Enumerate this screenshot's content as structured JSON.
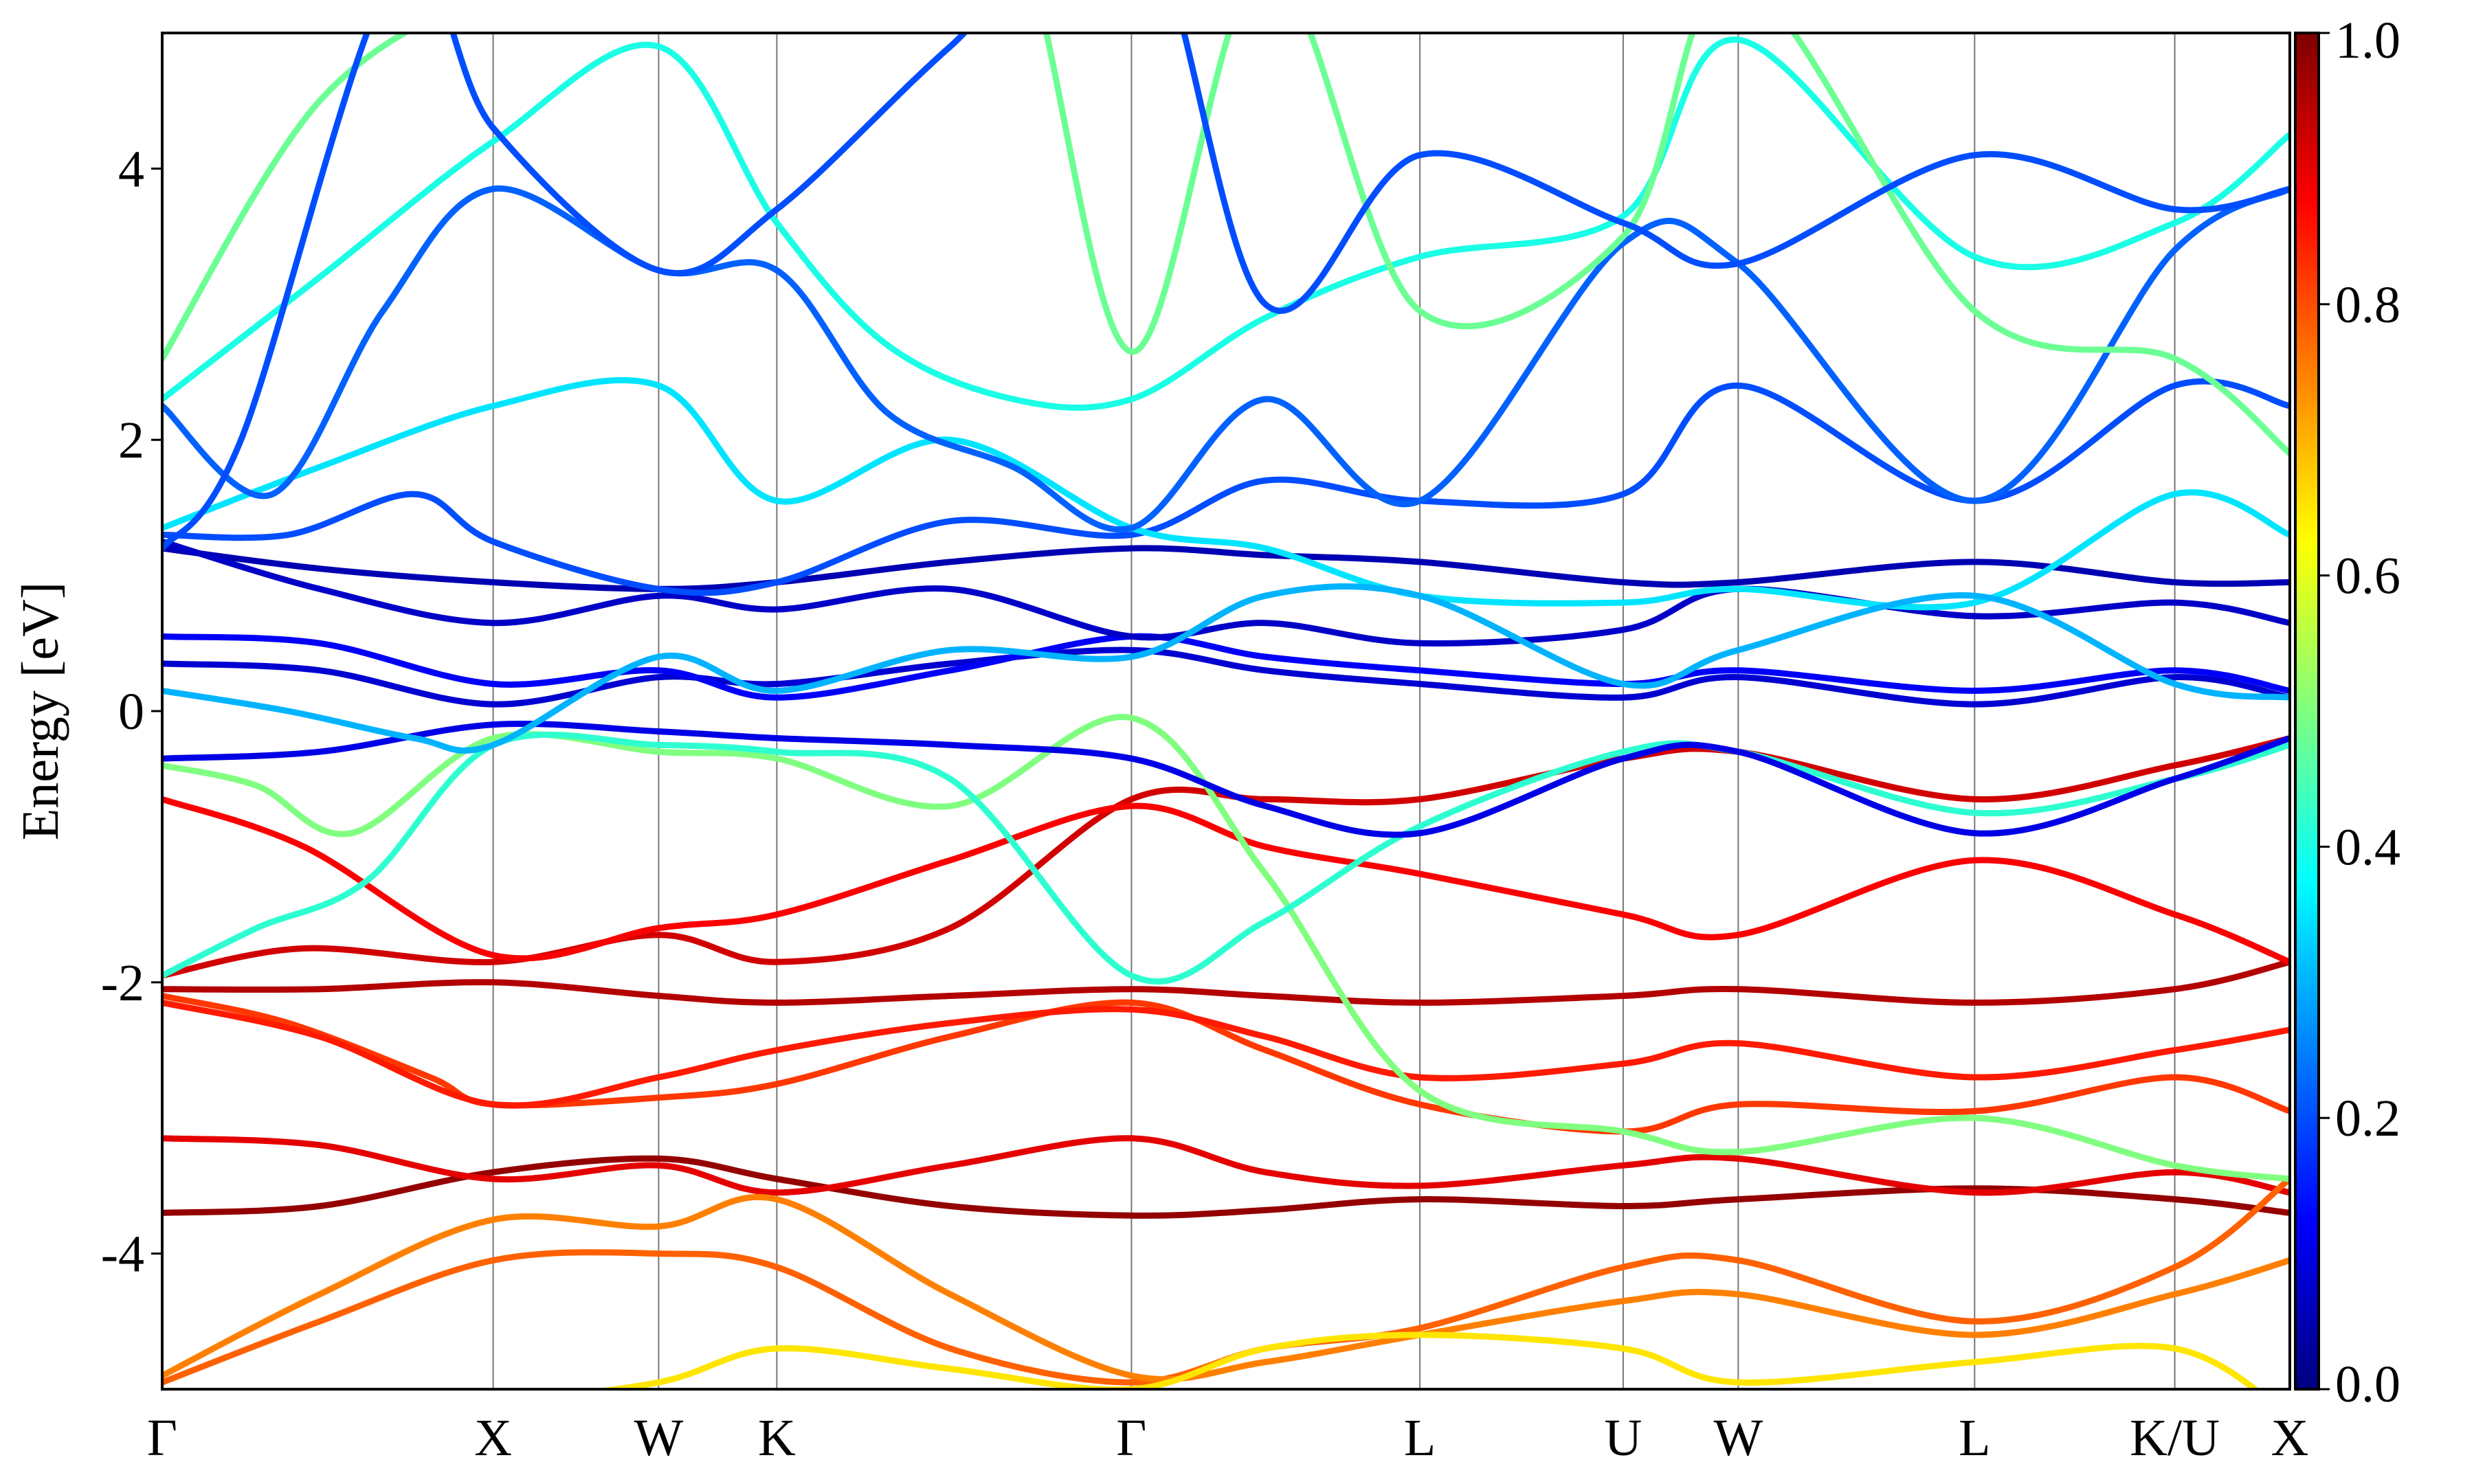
{
  "chart_data": {
    "type": "line",
    "title": "",
    "ylabel": "Energy [eV]",
    "xlabel": "",
    "ylim": [
      -5,
      5
    ],
    "yticks": [
      "4",
      "2",
      "0",
      "-2",
      "-4"
    ],
    "y_tick_values": [
      4,
      2,
      0,
      -2,
      -4
    ],
    "xlim": [
      0,
      13.5
    ],
    "kpoints": [
      {
        "label": "Γ",
        "x": 0
      },
      {
        "label": "X",
        "x": 2.1
      },
      {
        "label": "W",
        "x": 3.15
      },
      {
        "label": "K",
        "x": 3.9
      },
      {
        "label": "Γ",
        "x": 6.15
      },
      {
        "label": "L",
        "x": 7.98
      },
      {
        "label": "U",
        "x": 9.27
      },
      {
        "label": "W",
        "x": 10.0
      },
      {
        "label": "L",
        "x": 11.5
      },
      {
        "label": "K/U",
        "x": 12.77
      },
      {
        "label": "X",
        "x": 13.5
      }
    ],
    "colorbar": {
      "colormap": "jet",
      "range": [
        0.0,
        1.0
      ],
      "ticks": [
        "0.0",
        "0.2",
        "0.4",
        "0.6",
        "0.8",
        "1.0"
      ],
      "tick_values": [
        0.0,
        0.2,
        0.4,
        0.6,
        0.8,
        1.0
      ]
    },
    "grid": false,
    "series": [
      {
        "x": [
          0,
          1.0,
          2.1,
          3.15,
          3.9,
          5,
          6.15,
          7,
          7.98,
          9.27,
          10.0,
          11.5,
          12.77,
          13.5
        ],
        "y": [
          -3.7,
          -3.65,
          -3.4,
          -3.3,
          -3.45,
          -3.65,
          -3.72,
          -3.68,
          -3.6,
          -3.65,
          -3.6,
          -3.52,
          -3.6,
          -3.7
        ],
        "weight": 0.98
      },
      {
        "x": [
          0,
          1.0,
          2.1,
          3.15,
          3.9,
          5,
          6.15,
          7,
          7.98,
          9.27,
          10.0,
          11.5,
          12.77,
          13.5
        ],
        "y": [
          -3.15,
          -3.2,
          -3.45,
          -3.35,
          -3.55,
          -3.35,
          -3.15,
          -3.4,
          -3.5,
          -3.35,
          -3.3,
          -3.55,
          -3.4,
          -3.55
        ],
        "weight": 0.9
      },
      {
        "x": [
          0,
          0.8,
          1.7,
          2.1,
          3.15,
          3.9,
          5,
          6.15,
          7,
          7.98,
          9.27,
          10.0,
          11.5,
          12.77,
          13.5
        ],
        "y": [
          -2.1,
          -2.3,
          -2.7,
          -2.9,
          -2.85,
          -2.75,
          -2.4,
          -2.15,
          -2.5,
          -2.9,
          -3.1,
          -2.9,
          -2.95,
          -2.7,
          -2.95
        ],
        "weight": 0.82
      },
      {
        "x": [
          0,
          1.0,
          2.1,
          3.15,
          3.9,
          5,
          6.15,
          7,
          7.98,
          9.27,
          10.0,
          11.5,
          12.77,
          13.5
        ],
        "y": [
          -2.05,
          -2.05,
          -2.0,
          -2.1,
          -2.15,
          -2.1,
          -2.05,
          -2.1,
          -2.15,
          -2.1,
          -2.05,
          -2.15,
          -2.05,
          -1.85
        ],
        "weight": 0.95
      },
      {
        "x": [
          0,
          1.0,
          2.1,
          3.15,
          3.9,
          5,
          6.15,
          7,
          7.98,
          9.27,
          10.0,
          11.5,
          12.77,
          13.5
        ],
        "y": [
          -2.15,
          -2.4,
          -2.9,
          -2.7,
          -2.5,
          -2.3,
          -2.2,
          -2.4,
          -2.7,
          -2.6,
          -2.45,
          -2.7,
          -2.5,
          -2.35
        ],
        "weight": 0.85
      },
      {
        "x": [
          0,
          0.9,
          2.1,
          3.15,
          3.9,
          5,
          6.15,
          7,
          7.98,
          9.27,
          10.0,
          11.5,
          12.77,
          13.5
        ],
        "y": [
          -1.95,
          -1.75,
          -1.85,
          -1.65,
          -1.85,
          -1.6,
          -0.65,
          -0.65,
          -0.65,
          -0.35,
          -0.3,
          -0.65,
          -0.4,
          -0.2
        ],
        "weight": 0.92
      },
      {
        "x": [
          0,
          0.9,
          2.1,
          3.15,
          3.9,
          5,
          6.15,
          7,
          7.98,
          9.27,
          10.0,
          11.5,
          12.77,
          13.5
        ],
        "y": [
          -0.65,
          -1.0,
          -1.8,
          -1.6,
          -1.5,
          -1.1,
          -0.7,
          -1.0,
          -1.2,
          -1.5,
          -1.65,
          -1.1,
          -1.5,
          -1.85
        ],
        "weight": 0.88
      },
      {
        "x": [
          0,
          1.0,
          2.1,
          3.15,
          3.9,
          5,
          6.15,
          7,
          7.98,
          9.27,
          10.0,
          11.5,
          12.77,
          13.5
        ],
        "y": [
          -4.95,
          -4.5,
          -4.05,
          -4.0,
          -4.1,
          -4.7,
          -4.95,
          -4.7,
          -4.55,
          -4.1,
          -4.05,
          -4.5,
          -4.1,
          -3.45
        ],
        "weight": 0.78
      },
      {
        "x": [
          0,
          1.0,
          2.1,
          3.15,
          3.9,
          5,
          6.15,
          7,
          7.98,
          9.27,
          10.0,
          11.5,
          12.77,
          13.5
        ],
        "y": [
          -4.9,
          -4.3,
          -3.75,
          -3.8,
          -3.6,
          -4.3,
          -4.9,
          -4.8,
          -4.6,
          -4.35,
          -4.3,
          -4.6,
          -4.3,
          -4.05
        ],
        "weight": 0.75
      },
      {
        "x": [
          0,
          1.0,
          2.1,
          3.15,
          3.9,
          5,
          6.15,
          7,
          7.98,
          9.27,
          10.0,
          11.5,
          12.77,
          13.5
        ],
        "y": [
          -5.3,
          -5.2,
          -5.1,
          -4.95,
          -4.7,
          -4.85,
          -5.0,
          -4.7,
          -4.6,
          -4.7,
          -4.95,
          -4.8,
          -4.7,
          -5.2
        ],
        "weight": 0.65
      },
      {
        "x": [
          0,
          0.6,
          1.2,
          2.1,
          3.15,
          3.9,
          5,
          6.15,
          7,
          7.98,
          9.27,
          10.0,
          11.5,
          12.77,
          13.5
        ],
        "y": [
          -0.4,
          -0.55,
          -0.9,
          -0.2,
          -0.3,
          -0.35,
          -0.7,
          -0.05,
          -1.2,
          -2.8,
          -3.1,
          -3.25,
          -3.0,
          -3.35,
          -3.45
        ],
        "weight": 0.5
      },
      {
        "x": [
          0,
          0.6,
          1.3,
          2.1,
          3.15,
          3.9,
          5,
          6.15,
          7,
          7.98,
          9.27,
          10.0,
          11.5,
          12.77,
          13.5
        ],
        "y": [
          -1.95,
          -1.6,
          -1.25,
          -0.25,
          -0.25,
          -0.3,
          -0.5,
          -1.95,
          -1.55,
          -0.85,
          -0.3,
          -0.3,
          -0.75,
          -0.5,
          -0.25
        ],
        "weight": 0.42
      },
      {
        "x": [
          0,
          1.0,
          2.1,
          3.15,
          3.9,
          5,
          6.15,
          7,
          7.98,
          9.27,
          10.0,
          11.5,
          12.77,
          13.5
        ],
        "y": [
          -0.35,
          -0.3,
          -0.1,
          -0.15,
          -0.2,
          -0.25,
          -0.35,
          -0.7,
          -0.9,
          -0.35,
          -0.3,
          -0.9,
          -0.5,
          -0.2
        ],
        "weight": 0.1
      },
      {
        "x": [
          0,
          1.0,
          2.1,
          3.15,
          3.9,
          5,
          6.15,
          7,
          7.98,
          9.27,
          10.0,
          11.5,
          12.77,
          13.5
        ],
        "y": [
          0.35,
          0.3,
          0.05,
          0.25,
          0.2,
          0.35,
          0.45,
          0.3,
          0.2,
          0.1,
          0.25,
          0.05,
          0.25,
          0.1
        ],
        "weight": 0.08
      },
      {
        "x": [
          0,
          1.0,
          2.1,
          3.15,
          3.9,
          5,
          6.15,
          7,
          7.98,
          9.27,
          10.0,
          11.5,
          12.77,
          13.5
        ],
        "y": [
          0.55,
          0.5,
          0.2,
          0.3,
          0.1,
          0.3,
          0.55,
          0.4,
          0.3,
          0.2,
          0.3,
          0.15,
          0.3,
          0.15
        ],
        "weight": 0.12
      },
      {
        "x": [
          0,
          1.0,
          2.1,
          3.15,
          3.9,
          5,
          6.15,
          7,
          7.98,
          9.27,
          10.0,
          11.5,
          12.77,
          13.5
        ],
        "y": [
          1.2,
          1.05,
          0.95,
          0.9,
          0.95,
          1.1,
          1.2,
          1.15,
          1.1,
          0.95,
          0.95,
          1.1,
          0.95,
          0.95
        ],
        "weight": 0.05
      },
      {
        "x": [
          0,
          1.0,
          2.1,
          3.15,
          3.9,
          5,
          6.15,
          7,
          7.98,
          9.27,
          10.0,
          11.5,
          12.77,
          13.5
        ],
        "y": [
          1.25,
          0.9,
          0.65,
          0.85,
          0.75,
          0.9,
          0.55,
          0.65,
          0.5,
          0.6,
          0.9,
          0.7,
          0.8,
          0.65
        ],
        "weight": 0.07
      },
      {
        "x": [
          0,
          0.8,
          1.6,
          2.1,
          3.15,
          3.9,
          5,
          6.15,
          7,
          7.98,
          9.27,
          10.0,
          11.5,
          12.77,
          13.5
        ],
        "y": [
          1.3,
          1.3,
          1.6,
          1.25,
          0.9,
          0.95,
          1.4,
          1.3,
          1.7,
          1.55,
          1.6,
          2.4,
          1.55,
          2.4,
          2.25
        ],
        "weight": 0.2
      },
      {
        "x": [
          0,
          1.0,
          2.1,
          3.15,
          3.9,
          5,
          6.15,
          7,
          7.98,
          9.27,
          10.0,
          11.5,
          12.77,
          13.5
        ],
        "y": [
          1.35,
          1.8,
          2.25,
          2.4,
          1.55,
          2.0,
          1.35,
          1.2,
          0.85,
          0.8,
          0.9,
          0.8,
          1.6,
          1.3
        ],
        "weight": 0.35
      },
      {
        "x": [
          0,
          0.7,
          1.4,
          2.1,
          3.15,
          3.9,
          4.6,
          5.4,
          6.15,
          7,
          7.98,
          9.27,
          10.0,
          11.5,
          12.77,
          13.5
        ],
        "y": [
          2.25,
          1.6,
          2.95,
          3.85,
          3.25,
          3.25,
          2.2,
          1.8,
          1.35,
          2.3,
          1.55,
          3.45,
          3.3,
          1.55,
          3.4,
          3.85
        ],
        "weight": 0.22
      },
      {
        "x": [
          0,
          1.0,
          2.1,
          3.15,
          3.9,
          4.6,
          5.4,
          6.15,
          7,
          7.98,
          9.27,
          10.0,
          11.5,
          12.77,
          13.5
        ],
        "y": [
          2.3,
          3.2,
          4.2,
          4.9,
          3.6,
          2.7,
          2.3,
          2.3,
          2.9,
          3.35,
          3.65,
          4.95,
          3.35,
          3.6,
          4.25
        ],
        "weight": 0.4
      },
      {
        "x": [
          0,
          1.0,
          2.1,
          3.15,
          3.9,
          4.6,
          5.4,
          6.15,
          7,
          7.98,
          9.27,
          10.0,
          11.5,
          12.77,
          13.5
        ],
        "y": [
          2.6,
          4.5,
          5.3,
          5.5,
          5.1,
          5.5,
          5.8,
          2.65,
          5.5,
          2.95,
          3.5,
          5.4,
          2.95,
          2.6,
          1.9
        ],
        "weight": 0.48
      },
      {
        "x": [
          0,
          0.8,
          1.6,
          2.1,
          3.15,
          3.9,
          5,
          6.15,
          7,
          7.98,
          9.27,
          10.0,
          11.5,
          12.77,
          13.5
        ],
        "y": [
          0.15,
          0.0,
          -0.2,
          -0.25,
          0.4,
          0.15,
          0.45,
          0.4,
          0.85,
          0.85,
          0.2,
          0.45,
          0.85,
          0.2,
          0.1
        ],
        "weight": 0.3
      },
      {
        "x": [
          0,
          0.5,
          1.5,
          2.1,
          3.15,
          3.9,
          5,
          6.15,
          7,
          7.98,
          9.27,
          10.0,
          11.5,
          12.77,
          13.5
        ],
        "y": [
          1.2,
          2.0,
          5.5,
          4.3,
          3.25,
          3.7,
          4.9,
          6.0,
          3.0,
          4.1,
          3.6,
          3.3,
          4.1,
          3.7,
          3.85
        ],
        "weight": 0.2
      }
    ]
  }
}
